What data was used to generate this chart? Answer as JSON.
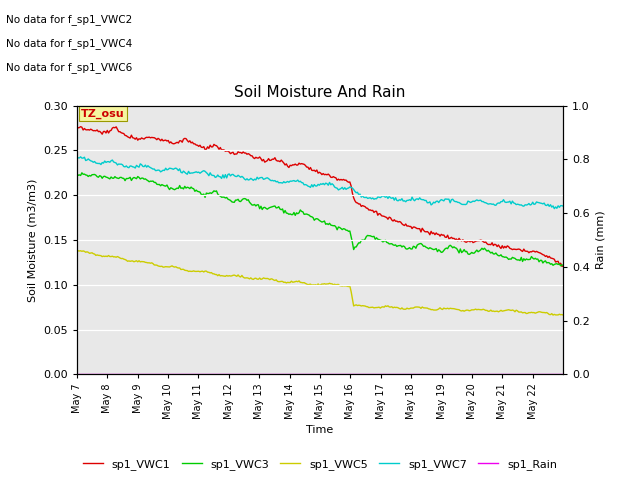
{
  "title": "Soil Moisture And Rain",
  "xlabel": "Time",
  "ylabel_left": "Soil Moisture (m3/m3)",
  "ylabel_right": "Rain (mm)",
  "ylim_left": [
    0.0,
    0.3
  ],
  "ylim_right": [
    0.0,
    1.0
  ],
  "background_color": "#e8e8e8",
  "no_data_text": [
    "No data for f_sp1_VWC2",
    "No data for f_sp1_VWC4",
    "No data for f_sp1_VWC6"
  ],
  "tz_label": "TZ_osu",
  "tz_color": "#cc0000",
  "tz_bg": "#f5f5a0",
  "series_colors": {
    "VWC1": "#dd0000",
    "VWC3": "#00cc00",
    "VWC5": "#cccc00",
    "VWC7": "#00cccc",
    "Rain": "#ee00ee"
  },
  "legend_labels": [
    "sp1_VWC1",
    "sp1_VWC3",
    "sp1_VWC5",
    "sp1_VWC7",
    "sp1_Rain"
  ],
  "xtick_labels": [
    "May 7",
    "May 8",
    "May 9",
    "May 10",
    "May 11",
    "May 12",
    "May 13",
    "May 14",
    "May 15",
    "May 16",
    "May 17",
    "May 18",
    "May 19",
    "May 20",
    "May 21",
    "May 22"
  ],
  "yticks_left": [
    0.0,
    0.05,
    0.1,
    0.15,
    0.2,
    0.25,
    0.3
  ],
  "yticks_right": [
    0.0,
    0.2,
    0.4,
    0.6,
    0.8,
    1.0
  ]
}
